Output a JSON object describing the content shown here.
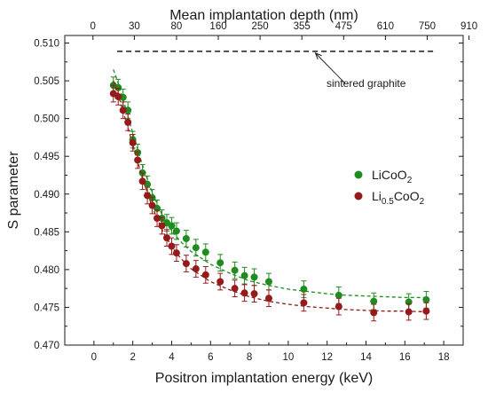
{
  "chart_data": {
    "type": "scatter",
    "xlabel": "Positron implantation energy (keV)",
    "ylabel": "S  parameter",
    "top_xlabel": "Mean implantation depth (nm)",
    "xlim": [
      -1.5,
      19
    ],
    "ylim": [
      0.47,
      0.511
    ],
    "xticks": [
      0,
      2,
      4,
      6,
      8,
      10,
      12,
      14,
      16,
      18
    ],
    "yticks": [
      0.47,
      0.475,
      0.48,
      0.485,
      0.49,
      0.495,
      0.5,
      0.505,
      0.51
    ],
    "ytick_labels": [
      "0.470",
      "0.475",
      "0.480",
      "0.485",
      "0.490",
      "0.495",
      "0.500",
      "0.505",
      "0.510"
    ],
    "top_ticks": [
      {
        "label": "0",
        "energy": -0.05
      },
      {
        "label": "30",
        "energy": 2.08
      },
      {
        "label": "80",
        "energy": 4.25
      },
      {
        "label": "160",
        "energy": 6.4
      },
      {
        "label": "250",
        "energy": 8.55
      },
      {
        "label": "355",
        "energy": 10.7
      },
      {
        "label": "475",
        "energy": 12.85
      },
      {
        "label": "610",
        "energy": 15.0
      },
      {
        "label": "750",
        "energy": 17.15
      },
      {
        "label": "910",
        "energy": 19.3
      }
    ],
    "grid": false,
    "legend_position": "right",
    "series": [
      {
        "name_base": "LiCoO",
        "name_sub": "2",
        "name_base2": "",
        "name_sub2": "",
        "color": "#1f8c1f",
        "err": 0.0011,
        "points": [
          [
            1.0,
            0.5044
          ],
          [
            1.25,
            0.5041
          ],
          [
            1.5,
            0.5028
          ],
          [
            1.75,
            0.5011
          ],
          [
            2.0,
            0.4972
          ],
          [
            2.25,
            0.4955
          ],
          [
            2.5,
            0.4928
          ],
          [
            2.75,
            0.4913
          ],
          [
            3.0,
            0.4895
          ],
          [
            3.25,
            0.4881
          ],
          [
            3.5,
            0.4868
          ],
          [
            3.75,
            0.4862
          ],
          [
            4.0,
            0.4858
          ],
          [
            4.25,
            0.4851
          ],
          [
            4.75,
            0.4841
          ],
          [
            5.25,
            0.4829
          ],
          [
            5.75,
            0.4823
          ],
          [
            6.5,
            0.4809
          ],
          [
            7.25,
            0.4799
          ],
          [
            7.75,
            0.4792
          ],
          [
            8.25,
            0.479
          ],
          [
            9.0,
            0.4784
          ],
          [
            10.8,
            0.4774
          ],
          [
            12.6,
            0.4766
          ],
          [
            14.4,
            0.4758
          ],
          [
            16.2,
            0.4757
          ],
          [
            17.1,
            0.476
          ]
        ],
        "fit": [
          [
            1.0,
            0.5065
          ],
          [
            1.25,
            0.5047
          ],
          [
            1.5,
            0.5025
          ],
          [
            1.75,
            0.5003
          ],
          [
            2.0,
            0.4981
          ],
          [
            2.5,
            0.4938
          ],
          [
            3.0,
            0.4902
          ],
          [
            3.5,
            0.4873
          ],
          [
            4.0,
            0.4851
          ],
          [
            4.5,
            0.4836
          ],
          [
            5.0,
            0.4824
          ],
          [
            6.0,
            0.4807
          ],
          [
            7.0,
            0.4795
          ],
          [
            8.0,
            0.4785
          ],
          [
            9.0,
            0.4779
          ],
          [
            10.0,
            0.4774
          ],
          [
            11.0,
            0.4771
          ],
          [
            12.0,
            0.4768
          ],
          [
            13.0,
            0.4766
          ],
          [
            14.0,
            0.4765
          ],
          [
            15.0,
            0.4764
          ],
          [
            16.0,
            0.4763
          ],
          [
            17.2,
            0.4763
          ]
        ]
      },
      {
        "name_base": "Li",
        "name_sub": "0.5",
        "name_base2": "CoO",
        "name_sub2": "2",
        "color": "#951a1a",
        "err": 0.0011,
        "points": [
          [
            1.0,
            0.5033
          ],
          [
            1.25,
            0.5029
          ],
          [
            1.5,
            0.5011
          ],
          [
            1.75,
            0.4995
          ],
          [
            2.0,
            0.4968
          ],
          [
            2.25,
            0.4945
          ],
          [
            2.5,
            0.4917
          ],
          [
            2.75,
            0.4898
          ],
          [
            3.0,
            0.4885
          ],
          [
            3.25,
            0.4868
          ],
          [
            3.5,
            0.4858
          ],
          [
            3.75,
            0.4842
          ],
          [
            4.0,
            0.4831
          ],
          [
            4.25,
            0.4822
          ],
          [
            4.75,
            0.4808
          ],
          [
            5.25,
            0.4801
          ],
          [
            5.75,
            0.4793
          ],
          [
            6.5,
            0.4784
          ],
          [
            7.25,
            0.4775
          ],
          [
            7.75,
            0.4769
          ],
          [
            8.25,
            0.4768
          ],
          [
            9.0,
            0.4762
          ],
          [
            10.8,
            0.4756
          ],
          [
            12.6,
            0.4751
          ],
          [
            14.4,
            0.4743
          ],
          [
            16.2,
            0.4744
          ],
          [
            17.1,
            0.4745
          ]
        ],
        "fit": [
          [
            1.0,
            0.505
          ],
          [
            1.25,
            0.5031
          ],
          [
            1.5,
            0.501
          ],
          [
            1.75,
            0.4988
          ],
          [
            2.0,
            0.4965
          ],
          [
            2.5,
            0.4921
          ],
          [
            3.0,
            0.4883
          ],
          [
            3.5,
            0.4853
          ],
          [
            4.0,
            0.483
          ],
          [
            4.5,
            0.4814
          ],
          [
            5.0,
            0.4801
          ],
          [
            6.0,
            0.4784
          ],
          [
            7.0,
            0.4773
          ],
          [
            8.0,
            0.4764
          ],
          [
            9.0,
            0.4758
          ],
          [
            10.0,
            0.4754
          ],
          [
            11.0,
            0.4751
          ],
          [
            12.0,
            0.4749
          ],
          [
            13.0,
            0.4747
          ],
          [
            14.0,
            0.4746
          ],
          [
            15.0,
            0.4745
          ],
          [
            16.0,
            0.4745
          ],
          [
            17.2,
            0.4744
          ]
        ]
      }
    ],
    "reference_line": {
      "label": "sintered graphite",
      "y": 0.5089,
      "x_start": 1.2,
      "x_end": 17.6,
      "arrow_target_x": 11.4
    }
  }
}
